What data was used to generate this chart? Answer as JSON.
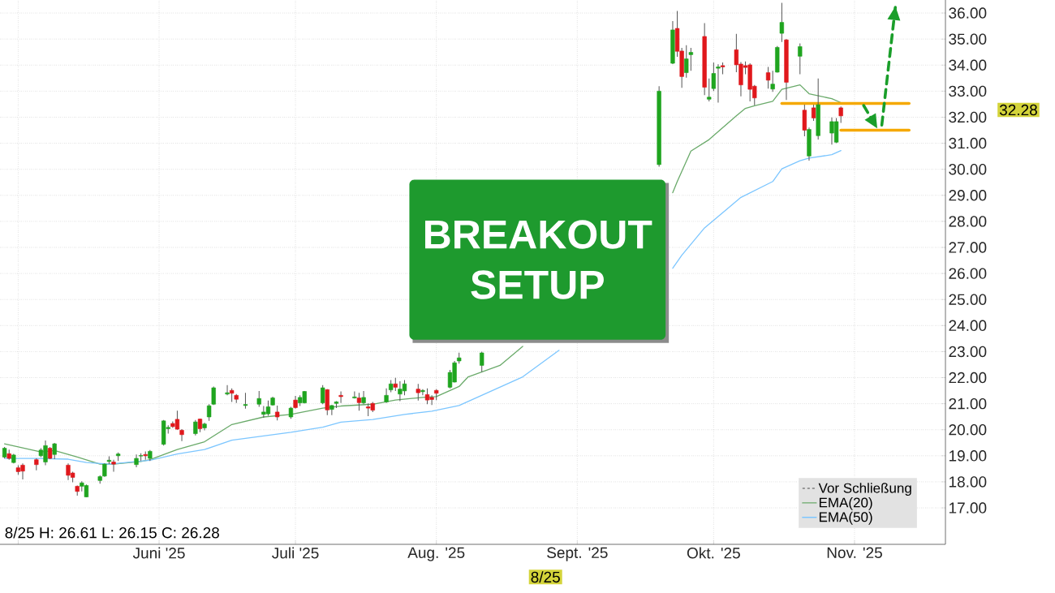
{
  "chart_data": {
    "type": "candlestick",
    "title": "BREAKOUT SETUP",
    "x": [
      "2025-04-28",
      "2025-04-29",
      "2025-04-30",
      "2025-05-01",
      "2025-05-02",
      "2025-05-05",
      "2025-05-06",
      "2025-05-07",
      "2025-05-08",
      "2025-05-09",
      "2025-05-12",
      "2025-05-13",
      "2025-05-14",
      "2025-05-15",
      "2025-05-16",
      "2025-05-19",
      "2025-05-20",
      "2025-05-21",
      "2025-05-22",
      "2025-05-23",
      "2025-05-27",
      "2025-05-28",
      "2025-05-29",
      "2025-05-30",
      "2025-06-02",
      "2025-06-03",
      "2025-06-04",
      "2025-06-05",
      "2025-06-06",
      "2025-06-09",
      "2025-06-10",
      "2025-06-11",
      "2025-06-12",
      "2025-06-13",
      "2025-06-16",
      "2025-06-17",
      "2025-06-18",
      "2025-06-20",
      "2025-06-23",
      "2025-06-24",
      "2025-06-25",
      "2025-06-26",
      "2025-06-27",
      "2025-06-30",
      "2025-07-01",
      "2025-07-02",
      "2025-07-03",
      "2025-07-07",
      "2025-07-08",
      "2025-07-09",
      "2025-07-10",
      "2025-07-11",
      "2025-07-14",
      "2025-07-15",
      "2025-07-16",
      "2025-07-17",
      "2025-07-18",
      "2025-07-21",
      "2025-07-22",
      "2025-07-23",
      "2025-07-24",
      "2025-07-25",
      "2025-07-28",
      "2025-07-29",
      "2025-07-30",
      "2025-07-31",
      "2025-08-01",
      "2025-08-04",
      "2025-08-05",
      "2025-08-06",
      "2025-08-11",
      "2025-09-19",
      "2025-09-22",
      "2025-09-23",
      "2025-09-24",
      "2025-09-25",
      "2025-09-26",
      "2025-09-29",
      "2025-09-30",
      "2025-10-01",
      "2025-10-02",
      "2025-10-03",
      "2025-10-06",
      "2025-10-07",
      "2025-10-08",
      "2025-10-09",
      "2025-10-10",
      "2025-10-13",
      "2025-10-14",
      "2025-10-15",
      "2025-10-16",
      "2025-10-17",
      "2025-10-20",
      "2025-10-21",
      "2025-10-22",
      "2025-10-23",
      "2025-10-24",
      "2025-10-27",
      "2025-10-28",
      "2025-10-29"
    ],
    "ohlc": [
      [
        18.95,
        19.34,
        18.9,
        19.29
      ],
      [
        19.08,
        19.24,
        18.85,
        18.9
      ],
      [
        18.74,
        19.07,
        18.71,
        19.03
      ],
      [
        18.54,
        18.64,
        18.27,
        18.39
      ],
      [
        18.64,
        18.71,
        18.09,
        18.41
      ],
      [
        18.85,
        18.9,
        18.44,
        18.66
      ],
      [
        19.0,
        19.29,
        18.95,
        19.22
      ],
      [
        18.76,
        19.59,
        18.64,
        19.39
      ],
      [
        19.29,
        19.34,
        18.87,
        18.9
      ],
      [
        19.05,
        19.49,
        18.87,
        19.46
      ],
      [
        18.64,
        18.71,
        18.07,
        18.25
      ],
      [
        18.34,
        18.39,
        17.98,
        18.17
      ],
      [
        17.83,
        17.86,
        17.47,
        17.63
      ],
      [
        17.83,
        18.02,
        17.63,
        17.96
      ],
      [
        17.42,
        17.9,
        17.41,
        17.86
      ],
      [
        18.05,
        18.25,
        17.93,
        18.2
      ],
      [
        18.22,
        18.71,
        18.19,
        18.68
      ],
      [
        18.78,
        18.98,
        18.68,
        18.83
      ],
      [
        18.76,
        18.85,
        18.39,
        18.68
      ],
      [
        19.0,
        19.13,
        18.8,
        19.07
      ],
      [
        18.66,
        19.05,
        18.56,
        18.9
      ],
      [
        18.99,
        19.1,
        18.8,
        19.01
      ],
      [
        19.05,
        19.17,
        18.85,
        19.0
      ],
      [
        18.9,
        19.22,
        18.8,
        19.17
      ],
      [
        19.44,
        20.37,
        19.39,
        20.34
      ],
      [
        20.04,
        20.17,
        19.85,
        20.09
      ],
      [
        20.24,
        20.32,
        20.07,
        20.12
      ],
      [
        20.4,
        20.73,
        20.0,
        20.02
      ],
      [
        19.98,
        20.02,
        19.56,
        19.81
      ],
      [
        19.85,
        20.37,
        19.78,
        20.3
      ],
      [
        20.41,
        20.43,
        19.91,
        20.04
      ],
      [
        20.07,
        20.27,
        19.98,
        20.22
      ],
      [
        20.49,
        20.98,
        20.34,
        20.92
      ],
      [
        20.98,
        21.66,
        20.95,
        21.61
      ],
      [
        21.37,
        21.71,
        21.32,
        21.42
      ],
      [
        21.51,
        21.59,
        21.07,
        21.4
      ],
      [
        21.32,
        21.37,
        21.03,
        21.17
      ],
      [
        20.93,
        21.42,
        20.81,
        20.97
      ],
      [
        20.98,
        21.49,
        20.88,
        21.2
      ],
      [
        20.59,
        20.91,
        20.46,
        20.68
      ],
      [
        20.61,
        21.12,
        20.54,
        20.88
      ],
      [
        20.95,
        21.27,
        20.93,
        21.22
      ],
      [
        20.68,
        20.93,
        20.36,
        20.49
      ],
      [
        20.49,
        20.88,
        20.42,
        20.83
      ],
      [
        21.14,
        21.3,
        20.81,
        20.85
      ],
      [
        21.03,
        21.32,
        20.91,
        21.24
      ],
      [
        21.03,
        21.49,
        21.01,
        21.47
      ],
      [
        21.03,
        21.71,
        20.98,
        21.61
      ],
      [
        21.54,
        21.56,
        20.56,
        20.76
      ],
      [
        20.78,
        20.95,
        20.56,
        20.93
      ],
      [
        21.01,
        21.1,
        20.83,
        21.07
      ],
      [
        21.32,
        21.47,
        21.03,
        21.27
      ],
      [
        21.22,
        21.47,
        21.2,
        21.26
      ],
      [
        21.22,
        21.42,
        20.73,
        21.04
      ],
      [
        21.03,
        21.49,
        20.98,
        21.24
      ],
      [
        20.88,
        21.01,
        20.52,
        20.83
      ],
      [
        21.01,
        21.07,
        20.68,
        20.75
      ],
      [
        21.07,
        21.59,
        21.03,
        21.32
      ],
      [
        21.53,
        21.91,
        21.44,
        21.76
      ],
      [
        21.76,
        21.99,
        21.49,
        21.63
      ],
      [
        21.37,
        21.86,
        21.1,
        21.56
      ],
      [
        21.49,
        21.91,
        21.32,
        21.76
      ],
      [
        21.56,
        21.76,
        21.12,
        21.42
      ],
      [
        21.46,
        21.56,
        21.32,
        21.51
      ],
      [
        21.35,
        21.59,
        20.98,
        21.14
      ],
      [
        21.24,
        21.32,
        20.95,
        21.16
      ],
      [
        21.51,
        21.56,
        21.14,
        21.4
      ],
      [
        21.63,
        22.3,
        21.59,
        22.2
      ],
      [
        21.83,
        22.64,
        21.81,
        22.57
      ],
      [
        22.64,
        22.96,
        22.54,
        22.76
      ],
      [
        22.47,
        23.0,
        22.22,
        22.95
      ],
      [
        30.18,
        33.19,
        30.1,
        33.0
      ],
      [
        34.07,
        35.69,
        34.04,
        35.35
      ],
      [
        35.41,
        36.08,
        34.32,
        34.53
      ],
      [
        34.54,
        34.66,
        33.13,
        33.56
      ],
      [
        33.71,
        34.76,
        33.52,
        34.24
      ],
      [
        34.4,
        34.66,
        33.78,
        34.49
      ],
      [
        35.1,
        35.61,
        32.85,
        33.15
      ],
      [
        32.69,
        33.49,
        32.61,
        32.77
      ],
      [
        33.1,
        34.1,
        33.0,
        33.68
      ],
      [
        33.88,
        34.03,
        32.56,
        33.93
      ],
      [
        33.98,
        34.1,
        33.65,
        33.93
      ],
      [
        34.59,
        35.2,
        33.73,
        34.01
      ],
      [
        34.04,
        34.12,
        32.8,
        33.24
      ],
      [
        33.98,
        34.14,
        33.65,
        33.91
      ],
      [
        34.01,
        34.07,
        32.61,
        33.07
      ],
      [
        33.19,
        33.24,
        32.46,
        32.74
      ],
      [
        33.71,
        33.93,
        33.1,
        33.42
      ],
      [
        33.08,
        33.78,
        32.97,
        33.27
      ],
      [
        33.73,
        34.73,
        33.71,
        34.68
      ],
      [
        35.22,
        36.39,
        34.89,
        35.64
      ],
      [
        34.97,
        35.0,
        32.66,
        33.34
      ],
      [
        34.34,
        34.83,
        33.65,
        34.71
      ],
      [
        32.27,
        32.48,
        31.27,
        31.5
      ],
      [
        30.51,
        31.6,
        30.33,
        31.53
      ],
      [
        32.36,
        32.48,
        31.86,
        31.97
      ],
      [
        31.29,
        33.49,
        31.14,
        32.48
      ],
      [
        31.39,
        31.99,
        30.95,
        31.83
      ],
      [
        31.04,
        31.97,
        31.0,
        31.83
      ],
      [
        32.36,
        32.41,
        31.78,
        32.05
      ]
    ],
    "series": [
      {
        "name": "EMA(20)",
        "type": "line",
        "color": "#6aaa6a",
        "x": [
          "2025-04-28",
          "2025-05-01",
          "2025-05-06",
          "2025-05-09",
          "2025-05-14",
          "2025-05-19",
          "2025-05-22",
          "2025-05-28",
          "2025-05-30",
          "2025-06-05",
          "2025-06-11",
          "2025-06-17",
          "2025-06-24",
          "2025-06-30",
          "2025-07-07",
          "2025-07-11",
          "2025-07-18",
          "2025-07-23",
          "2025-07-29",
          "2025-08-01",
          "2025-08-06",
          "2025-08-08",
          "2025-08-15",
          "2025-08-20",
          "2025-08-21",
          "2025-09-22",
          "2025-09-23",
          "2025-09-26",
          "2025-09-30",
          "2025-10-06",
          "2025-10-08",
          "2025-10-10",
          "2025-10-14",
          "2025-10-16",
          "2025-10-20",
          "2025-10-22",
          "2025-10-27",
          "2025-10-29"
        ],
        "values": [
          19.46,
          19.34,
          19.15,
          19.2,
          18.95,
          18.68,
          18.68,
          18.78,
          18.85,
          19.24,
          19.54,
          20.2,
          20.49,
          20.59,
          20.83,
          20.91,
          20.98,
          21.14,
          21.24,
          21.27,
          21.66,
          22.03,
          22.47,
          23.2,
          null,
          29.1,
          29.53,
          30.7,
          31.14,
          32.05,
          32.34,
          32.44,
          32.61,
          33.07,
          33.24,
          32.9,
          32.71,
          32.56
        ]
      },
      {
        "name": "EMA(50)",
        "type": "line",
        "color": "#7cc6ff",
        "x": [
          "2025-04-28",
          "2025-05-05",
          "2025-05-12",
          "2025-05-16",
          "2025-05-21",
          "2025-05-30",
          "2025-06-05",
          "2025-06-11",
          "2025-06-17",
          "2025-06-30",
          "2025-07-07",
          "2025-07-11",
          "2025-07-18",
          "2025-07-25",
          "2025-07-31",
          "2025-08-06",
          "2025-08-20",
          "2025-08-28",
          "2025-08-29",
          "2025-09-22",
          "2025-09-24",
          "2025-09-29",
          "2025-10-07",
          "2025-10-14",
          "2025-10-16",
          "2025-10-20",
          "2025-10-22",
          "2025-10-27",
          "2025-10-29"
        ],
        "values": [
          18.9,
          18.9,
          18.87,
          18.74,
          18.68,
          18.83,
          19.07,
          19.24,
          19.6,
          19.9,
          20.1,
          20.29,
          20.39,
          20.59,
          20.71,
          20.93,
          22.03,
          23.05,
          null,
          26.2,
          26.7,
          27.75,
          28.92,
          29.53,
          30.02,
          30.33,
          30.43,
          30.56,
          30.72
        ]
      },
      {
        "type": "line",
        "color": "#f5a800",
        "x": [
          "2025-10-16",
          "2025-11-13"
        ],
        "values": [
          32.53,
          32.53
        ]
      },
      {
        "type": "line",
        "color": "#f5a800",
        "x": [
          "2025-10-29",
          "2025-11-13"
        ],
        "values": [
          31.5,
          31.5
        ]
      },
      {
        "type": "line",
        "color": "#1a9e2a",
        "line_style": "dashed",
        "x": [
          "2025-11-03",
          "2025-11-06"
        ],
        "values": [
          32.45,
          31.57
        ]
      },
      {
        "type": "line",
        "color": "#1a9e2a",
        "line_style": "dashed",
        "x": [
          "2025-11-07",
          "2025-11-10"
        ],
        "values": [
          31.7,
          36.26
        ]
      }
    ],
    "xlim": [
      "2025-04-27",
      "2025-11-21"
    ],
    "xticks": [
      {
        "value": "2025-05-01",
        "label": null
      },
      {
        "value": "2025-06-01",
        "label": "Juni '25"
      },
      {
        "value": "2025-07-01",
        "label": "Juli '25"
      },
      {
        "value": "2025-08-01",
        "label": "Aug. '25"
      },
      {
        "value": "2025-09-01",
        "label": "Sept. '25"
      },
      {
        "value": "2025-10-01",
        "label": "Okt. '25"
      },
      {
        "value": "2025-11-01",
        "label": "Nov. '25"
      }
    ],
    "ylim": [
      15.6,
      36.5
    ],
    "yticks": [
      {
        "value": 17,
        "label": "17.00"
      },
      {
        "value": 18,
        "label": "18.00"
      },
      {
        "value": 19,
        "label": "19.00"
      },
      {
        "value": 20,
        "label": "20.00"
      },
      {
        "value": 21,
        "label": "21.00"
      },
      {
        "value": 22,
        "label": "22.00"
      },
      {
        "value": 23,
        "label": "23.00"
      },
      {
        "value": 24,
        "label": "24.00"
      },
      {
        "value": 25,
        "label": "25.00"
      },
      {
        "value": 26,
        "label": "26.00"
      },
      {
        "value": 27,
        "label": "27.00"
      },
      {
        "value": 28,
        "label": "28.00"
      },
      {
        "value": 29,
        "label": "29.00"
      },
      {
        "value": 30,
        "label": "30.00"
      },
      {
        "value": 31,
        "label": "31.00"
      },
      {
        "value": 32,
        "label": "32.00"
      },
      {
        "value": 33,
        "label": "33.00"
      },
      {
        "value": 34,
        "label": "34.00"
      },
      {
        "value": 35,
        "label": "35.00"
      },
      {
        "value": 36,
        "label": "36.00"
      }
    ],
    "annotations": [
      "Vor Schließung",
      "8/25 H: 26.61 L: 26.15 C: 26.28",
      "8/25",
      "32.28"
    ],
    "grid": true,
    "legend": "bottom right"
  }
}
